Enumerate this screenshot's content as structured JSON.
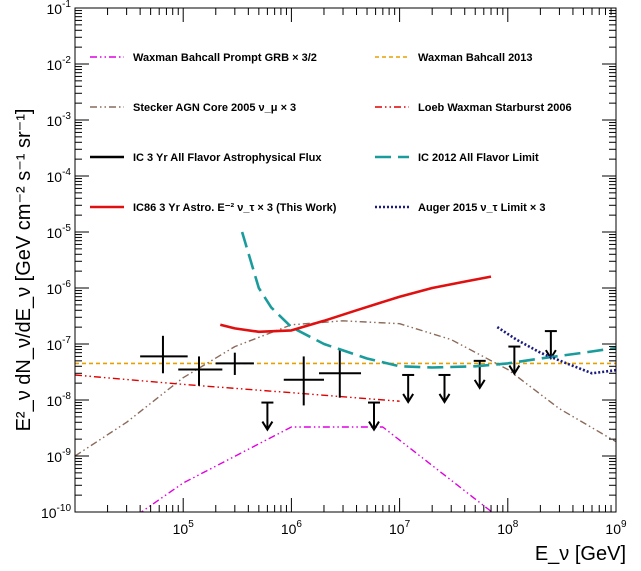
{
  "chart_data": {
    "type": "line",
    "xlabel": "E_ν [GeV]",
    "ylabel": "E²_ν dN_ν/dE_ν [GeV cm⁻² s⁻¹ sr⁻¹]",
    "xscale": "log",
    "yscale": "log",
    "xlim": [
      10000,
      1000000000
    ],
    "ylim": [
      1e-10,
      0.1
    ],
    "grid": false,
    "legend_position": "top (two columns)",
    "x_tick_labels": [
      {
        "mant": "10",
        "exp": "5",
        "v": 100000
      },
      {
        "mant": "10",
        "exp": "6",
        "v": 1000000
      },
      {
        "mant": "10",
        "exp": "7",
        "v": 10000000
      },
      {
        "mant": "10",
        "exp": "8",
        "v": 100000000
      },
      {
        "mant": "10",
        "exp": "9",
        "v": 1000000000
      }
    ],
    "y_tick_labels": [
      {
        "mant": "10",
        "exp": "-10",
        "v": 1e-10
      },
      {
        "mant": "10",
        "exp": "-9",
        "v": 1e-09
      },
      {
        "mant": "10",
        "exp": "-8",
        "v": 1e-08
      },
      {
        "mant": "10",
        "exp": "-7",
        "v": 1e-07
      },
      {
        "mant": "10",
        "exp": "-6",
        "v": 1e-06
      },
      {
        "mant": "10",
        "exp": "-5",
        "v": 1e-05
      },
      {
        "mant": "10",
        "exp": "-4",
        "v": 0.0001
      },
      {
        "mant": "10",
        "exp": "-3",
        "v": 0.001
      },
      {
        "mant": "10",
        "exp": "-2",
        "v": 0.01
      },
      {
        "mant": "10",
        "exp": "-1",
        "v": 0.1
      }
    ],
    "series": [
      {
        "name": "Waxman Bahcall Prompt GRB × 3/2",
        "color": "#e000e0",
        "style": "dash-dot-dot",
        "x": [
          10000,
          100000,
          1000000,
          7000000,
          100000000
        ],
        "y": [
          1.5e-11,
          3.3e-10,
          3.3e-09,
          3.3e-09,
          6e-11
        ]
      },
      {
        "name": "Waxman Bahcall 2013",
        "color": "#e6a000",
        "style": "dashed",
        "x": [
          10000,
          1000000000
        ],
        "y": [
          4.5e-08,
          4.5e-08
        ]
      },
      {
        "name": "Stecker AGN Core 2005 ν_μ × 3",
        "color": "#8b6a5a",
        "style": "dash-dot-dot",
        "x": [
          10000,
          30000,
          100000,
          300000,
          1000000,
          3000000,
          10000000,
          30000000,
          100000000,
          300000000,
          1000000000
        ],
        "y": [
          1e-09,
          4e-09,
          2.5e-08,
          9e-08,
          2.2e-07,
          2.6e-07,
          2.3e-07,
          1.2e-07,
          3.5e-08,
          7e-09,
          1.8e-09
        ]
      },
      {
        "name": "Loeb Waxman Starburst 2006",
        "color": "#e00000",
        "style": "dash-dot-dot",
        "x": [
          10000,
          100000,
          1000000,
          10000000
        ],
        "y": [
          2.8e-08,
          1.9e-08,
          1.35e-08,
          9.5e-09
        ]
      },
      {
        "name": "IC 3 Yr All Flavor Astrophysical Flux",
        "color": "#000000",
        "style": "crosses",
        "points": [
          {
            "x": 65000,
            "y": 6e-08,
            "xlo": 40000,
            "xhi": 110000,
            "ylo": 3e-08,
            "yhi": 1.4e-07
          },
          {
            "x": 140000,
            "y": 3.5e-08,
            "xlo": 90000,
            "xhi": 230000,
            "ylo": 1.8e-08,
            "yhi": 6e-08
          },
          {
            "x": 300000,
            "y": 4.5e-08,
            "xlo": 200000,
            "xhi": 450000,
            "ylo": 2.8e-08,
            "yhi": 7e-08
          },
          {
            "x": 1300000,
            "y": 2.3e-08,
            "xlo": 850000,
            "xhi": 2000000,
            "ylo": 8e-09,
            "yhi": 6e-08
          },
          {
            "x": 2800000,
            "y": 3e-08,
            "xlo": 1800000,
            "xhi": 4400000,
            "ylo": 1.1e-08,
            "yhi": 8e-08
          }
        ],
        "upper_limits": [
          {
            "x": 600000,
            "y": 9e-09
          },
          {
            "x": 5800000,
            "y": 9e-09
          },
          {
            "x": 12000000,
            "y": 2.8e-08
          },
          {
            "x": 26000000,
            "y": 2.8e-08
          },
          {
            "x": 55000000,
            "y": 5e-08
          },
          {
            "x": 115000000,
            "y": 9e-08
          },
          {
            "x": 250000000,
            "y": 1.7e-07
          }
        ]
      },
      {
        "name": "IC 2012 All Flavor Limit",
        "color": "#1a9c9c",
        "style": "long-dashed",
        "x": [
          350000,
          500000,
          650000,
          1000000,
          2000000,
          5000000,
          10000000,
          20000000,
          50000000,
          100000000,
          200000000,
          500000000,
          1000000000
        ],
        "y": [
          1e-05,
          1e-06,
          4.5e-07,
          2e-07,
          1e-07,
          5.5e-08,
          4e-08,
          3.8e-08,
          4e-08,
          4.5e-08,
          5.5e-08,
          7e-08,
          8.5e-08
        ]
      },
      {
        "name": "IC86 3 Yr Astro. E⁻² ν_τ × 3 (This Work)",
        "color": "#e01010",
        "style": "solid",
        "x": [
          220000,
          300000,
          500000,
          1000000,
          2000000,
          4000000,
          10000000,
          20000000,
          40000000,
          70000000
        ],
        "y": [
          2.2e-07,
          1.9e-07,
          1.65e-07,
          1.75e-07,
          2.6e-07,
          4e-07,
          7e-07,
          1e-06,
          1.3e-06,
          1.6e-06
        ]
      },
      {
        "name": "Auger 2015 ν_τ Limit × 3",
        "color": "#1a1a80",
        "style": "dotted",
        "x": [
          80000000,
          120000000,
          200000000,
          350000000,
          600000000,
          1000000000
        ],
        "y": [
          2e-07,
          1.2e-07,
          7e-08,
          4.5e-08,
          3e-08,
          3.4e-08
        ]
      }
    ]
  }
}
